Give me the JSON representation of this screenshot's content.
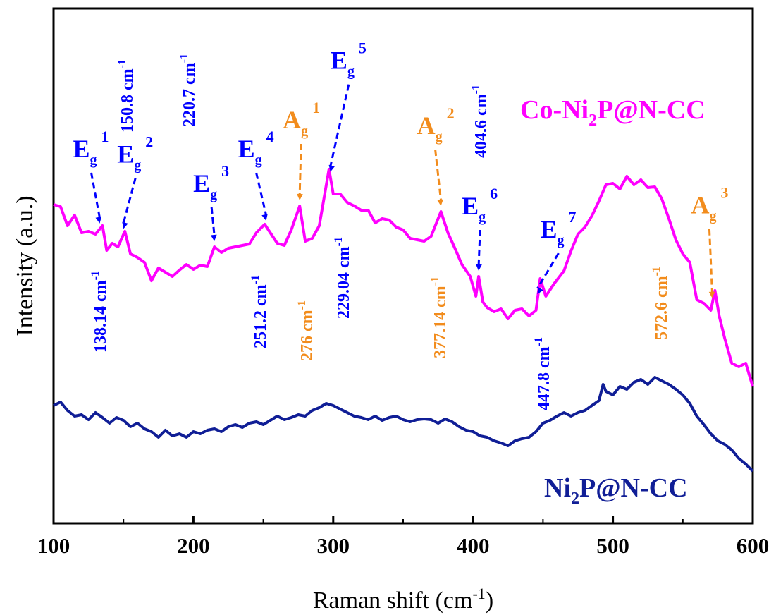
{
  "chart_data": {
    "type": "line",
    "xlabel": "Raman shift (cm",
    "xlabel_sup": "-1",
    "xlabel_close": ")",
    "ylabel": "Intensity (a.u.)",
    "xlim": [
      100,
      600
    ],
    "xticks": [
      "100",
      "200",
      "300",
      "400",
      "500",
      "600"
    ],
    "series": [
      {
        "name": "Co-Ni2P@N-CC",
        "label_parts": [
          "Co-Ni",
          "2",
          "P@N-CC"
        ],
        "color": "#ff00ff",
        "x": [
          100,
          105,
          110,
          115,
          120,
          125,
          130,
          135,
          138,
          142,
          146,
          151,
          155,
          160,
          165,
          170,
          175,
          180,
          185,
          190,
          195,
          200,
          205,
          210,
          215,
          220,
          225,
          230,
          235,
          240,
          245,
          251,
          255,
          260,
          265,
          270,
          276,
          280,
          285,
          290,
          297,
          300,
          305,
          310,
          315,
          320,
          325,
          330,
          335,
          340,
          345,
          350,
          355,
          360,
          365,
          370,
          377,
          382,
          387,
          392,
          398,
          402,
          404,
          407,
          410,
          415,
          420,
          425,
          430,
          435,
          440,
          445,
          448,
          452,
          458,
          465,
          470,
          475,
          480,
          485,
          490,
          495,
          500,
          505,
          510,
          515,
          520,
          525,
          530,
          535,
          540,
          545,
          550,
          555,
          560,
          565,
          570,
          573,
          576,
          580,
          585,
          590,
          595,
          600
        ],
        "y": [
          290,
          293,
          320,
          305,
          330,
          328,
          332,
          320,
          355,
          345,
          350,
          328,
          360,
          365,
          372,
          398,
          380,
          386,
          392,
          383,
          375,
          382,
          376,
          378,
          350,
          358,
          352,
          350,
          348,
          346,
          330,
          318,
          330,
          345,
          348,
          326,
          292,
          342,
          338,
          320,
          240,
          275,
          275,
          287,
          292,
          298,
          298,
          316,
          310,
          312,
          322,
          326,
          338,
          340,
          342,
          335,
          300,
          330,
          352,
          375,
          392,
          420,
          392,
          428,
          436,
          442,
          438,
          452,
          440,
          438,
          448,
          440,
          395,
          420,
          402,
          384,
          356,
          332,
          322,
          306,
          285,
          262,
          260,
          268,
          250,
          262,
          255,
          266,
          265,
          282,
          310,
          340,
          360,
          372,
          425,
          430,
          440,
          412,
          448,
          480,
          515,
          520,
          515,
          548
        ],
        "peaks": [
          {
            "mode": "E",
            "idx": "1",
            "color": "#0000ff",
            "kind": "E",
            "x": 138.14,
            "value": "138.14 cm",
            "value_pos": "below"
          },
          {
            "mode": "E",
            "idx": "2",
            "color": "#0000ff",
            "kind": "E",
            "x": 150.8,
            "value": "150.8 cm",
            "value_pos": "above"
          },
          {
            "mode": "E",
            "idx": "3",
            "color": "#0000ff",
            "kind": "E",
            "x": 220.7,
            "value": "220.7 cm",
            "value_pos": "above"
          },
          {
            "mode": "E",
            "idx": "4",
            "color": "#0000ff",
            "kind": "E",
            "x": 251.2,
            "value": "251.2 cm",
            "value_pos": "below"
          },
          {
            "mode": "A",
            "idx": "1",
            "color": "#f28c1c",
            "kind": "A",
            "x": 276,
            "value": "276 cm",
            "value_pos": "below"
          },
          {
            "mode": "E",
            "idx": "5",
            "color": "#0000ff",
            "kind": "E",
            "x": 229.04,
            "value": "229.04 cm",
            "value_pos": "below"
          },
          {
            "mode": "A",
            "idx": "2",
            "color": "#f28c1c",
            "kind": "A",
            "x": 377.14,
            "value": "377.14 cm",
            "value_pos": "below"
          },
          {
            "mode": "E",
            "idx": "6",
            "color": "#0000ff",
            "kind": "E",
            "x": 404.6,
            "value": "404.6 cm",
            "value_pos": "above"
          },
          {
            "mode": "E",
            "idx": "7",
            "color": "#0000ff",
            "kind": "E",
            "x": 447.8,
            "value": "447.8 cm",
            "value_pos": "below"
          },
          {
            "mode": "A",
            "idx": "3",
            "color": "#f28c1c",
            "kind": "A",
            "x": 572.6,
            "value": "572.6 cm",
            "value_pos": "below"
          }
        ]
      },
      {
        "name": "Ni2P@N-CC",
        "label_parts": [
          "Ni",
          "2",
          "P@N-CC"
        ],
        "color": "#101e96",
        "x": [
          100,
          105,
          110,
          115,
          120,
          125,
          130,
          135,
          140,
          145,
          150,
          155,
          160,
          165,
          170,
          175,
          180,
          185,
          190,
          195,
          200,
          205,
          210,
          215,
          220,
          225,
          230,
          235,
          240,
          245,
          250,
          255,
          260,
          265,
          270,
          275,
          280,
          285,
          290,
          295,
          300,
          305,
          310,
          315,
          320,
          325,
          330,
          335,
          340,
          345,
          350,
          355,
          360,
          365,
          370,
          375,
          380,
          385,
          390,
          395,
          400,
          405,
          410,
          415,
          420,
          425,
          430,
          435,
          440,
          445,
          450,
          455,
          460,
          465,
          470,
          475,
          480,
          485,
          490,
          493,
          495,
          500,
          505,
          510,
          515,
          520,
          525,
          530,
          535,
          540,
          545,
          550,
          555,
          560,
          565,
          570,
          575,
          580,
          585,
          590,
          595,
          600
        ],
        "y": [
          575,
          570,
          582,
          590,
          588,
          595,
          585,
          592,
          600,
          592,
          596,
          605,
          600,
          608,
          612,
          620,
          610,
          618,
          615,
          620,
          612,
          615,
          610,
          608,
          612,
          605,
          602,
          606,
          600,
          598,
          602,
          596,
          590,
          595,
          592,
          588,
          590,
          582,
          578,
          572,
          575,
          580,
          585,
          590,
          592,
          595,
          590,
          596,
          592,
          590,
          595,
          598,
          595,
          594,
          595,
          600,
          594,
          598,
          605,
          610,
          612,
          618,
          620,
          625,
          628,
          632,
          625,
          622,
          620,
          612,
          600,
          596,
          590,
          585,
          590,
          585,
          582,
          575,
          568,
          545,
          555,
          560,
          548,
          552,
          542,
          538,
          545,
          535,
          540,
          545,
          552,
          560,
          572,
          590,
          602,
          615,
          625,
          630,
          638,
          650,
          658,
          668
        ]
      }
    ]
  }
}
